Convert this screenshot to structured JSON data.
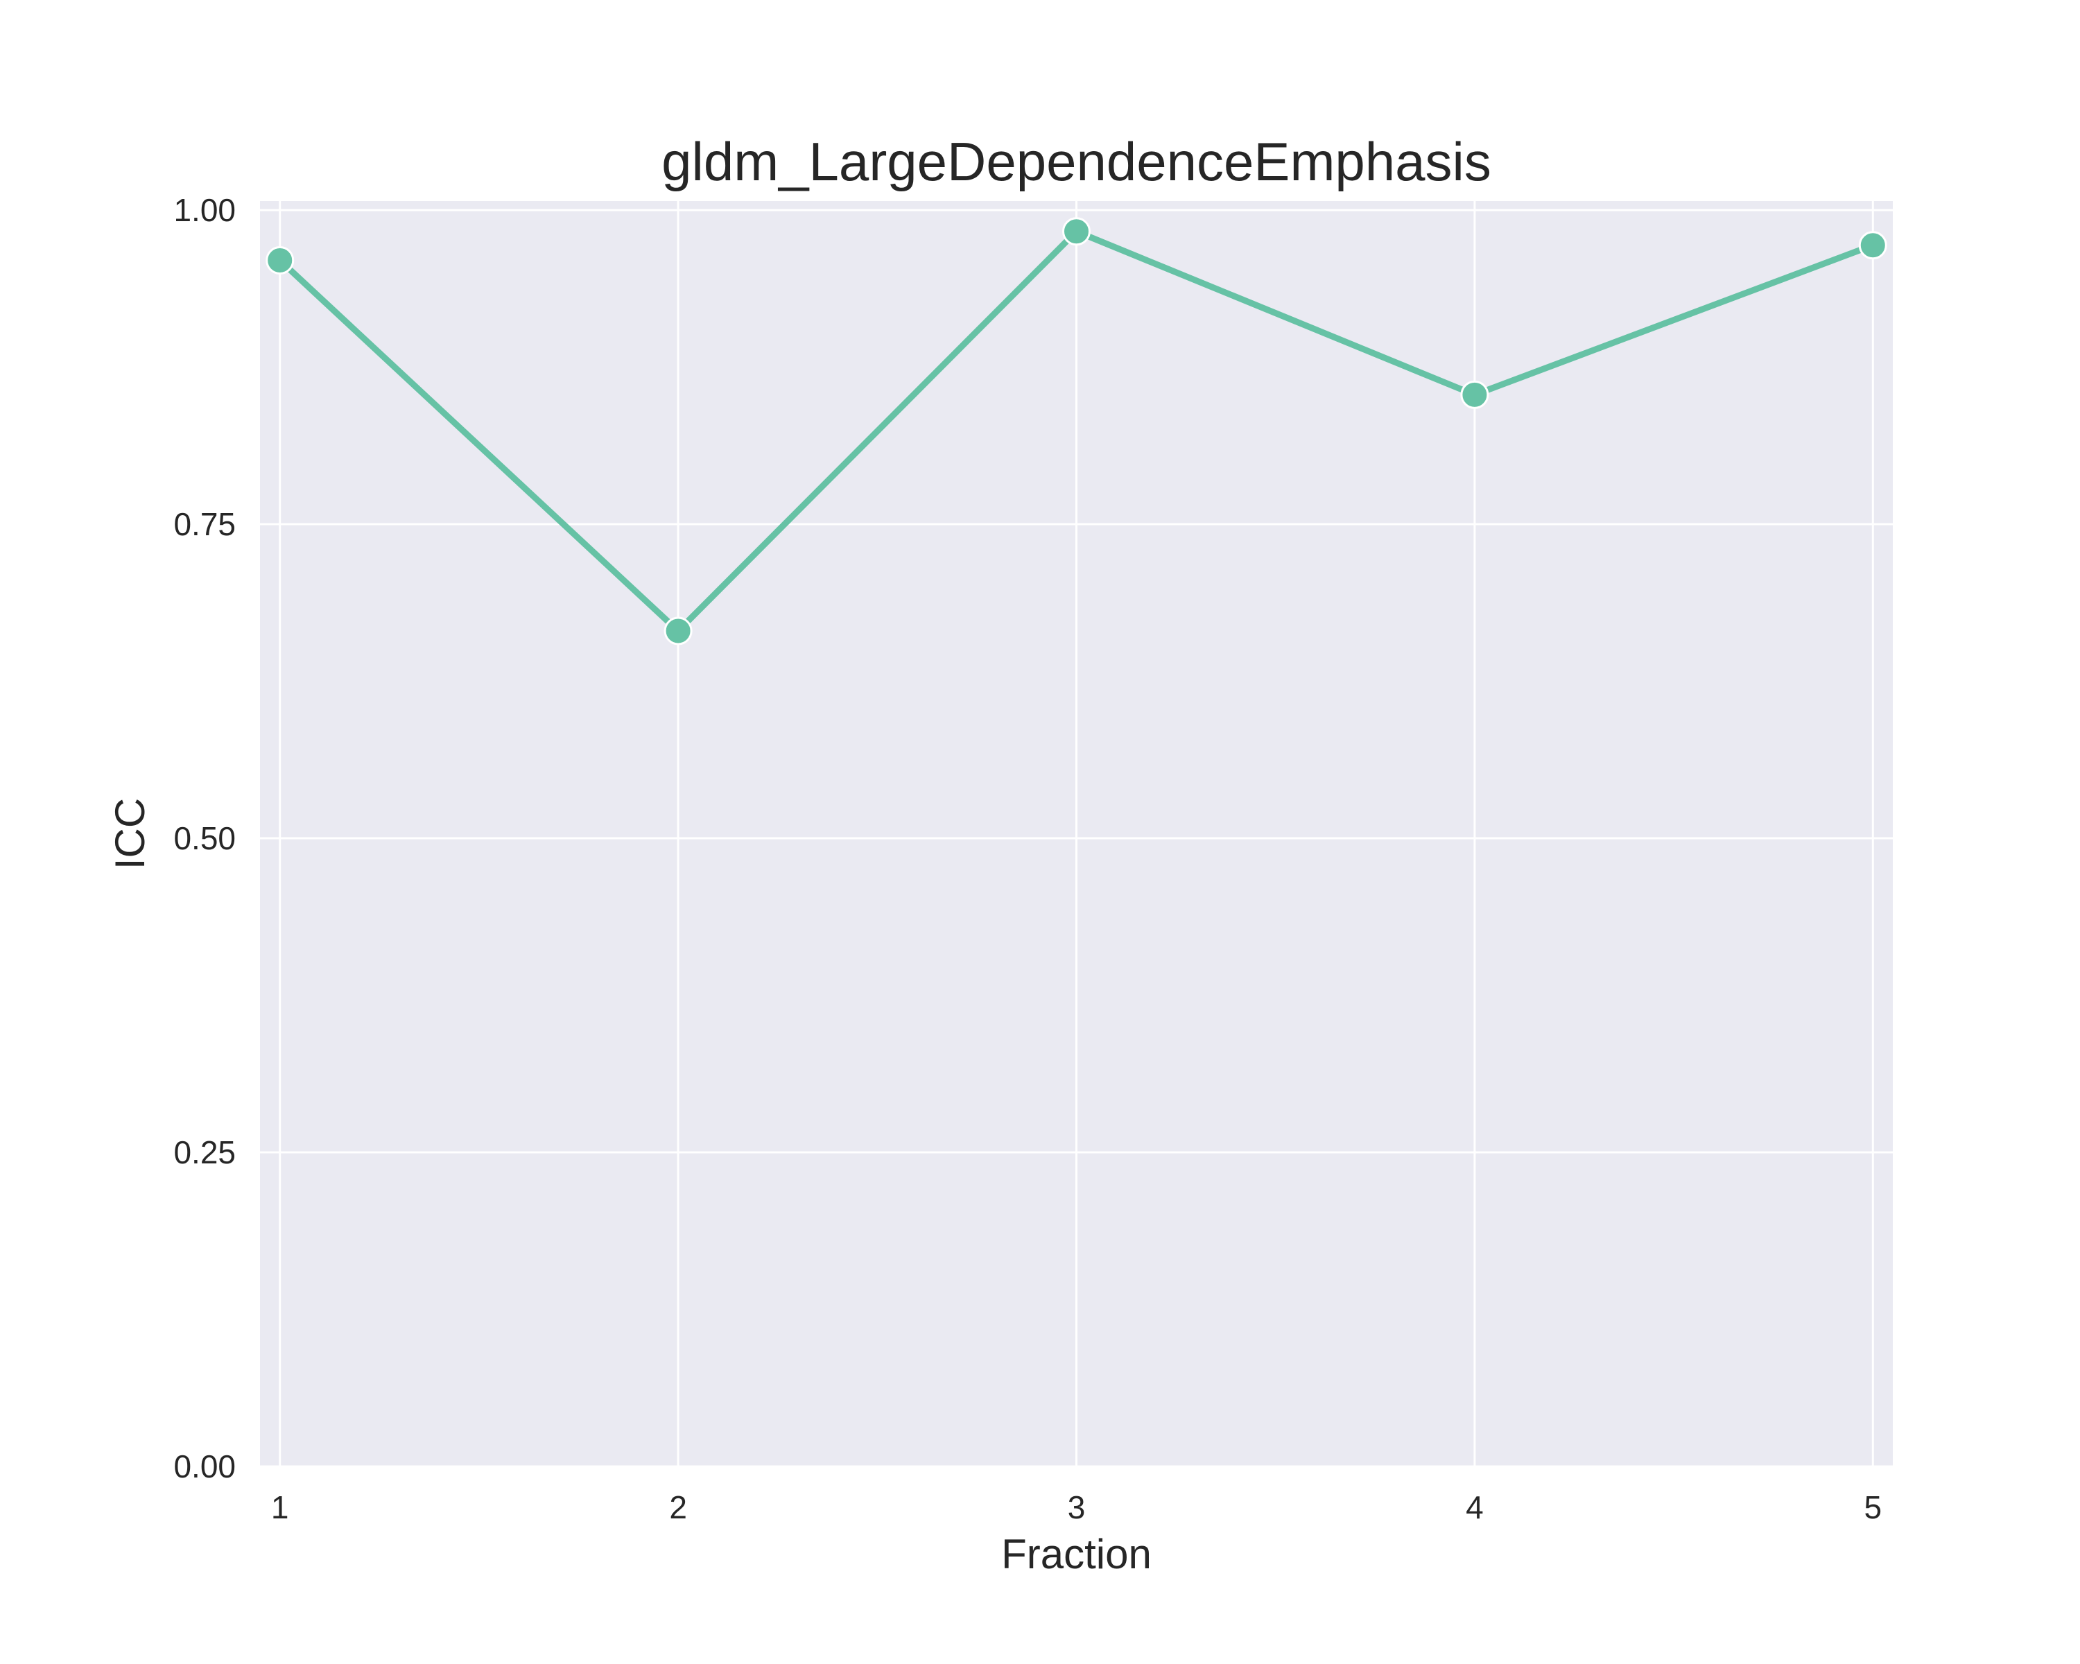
{
  "chart_data": {
    "type": "line",
    "title": "gldm_LargeDependenceEmphasis",
    "xlabel": "Fraction",
    "ylabel": "ICC",
    "x": [
      1,
      2,
      3,
      4,
      5
    ],
    "xticks": [
      "1",
      "2",
      "3",
      "4",
      "5"
    ],
    "yticks": [
      "0.00",
      "0.25",
      "0.50",
      "0.75",
      "1.00"
    ],
    "ylim": [
      0,
      1.0
    ],
    "xlim": [
      0.95,
      5.05
    ],
    "grid": true,
    "series": [
      {
        "values": [
          0.96,
          0.665,
          0.983,
          0.853,
          0.972
        ],
        "color": "#66c2a5"
      }
    ],
    "background": "#eaeaf2",
    "grid_color": "#ffffff"
  }
}
